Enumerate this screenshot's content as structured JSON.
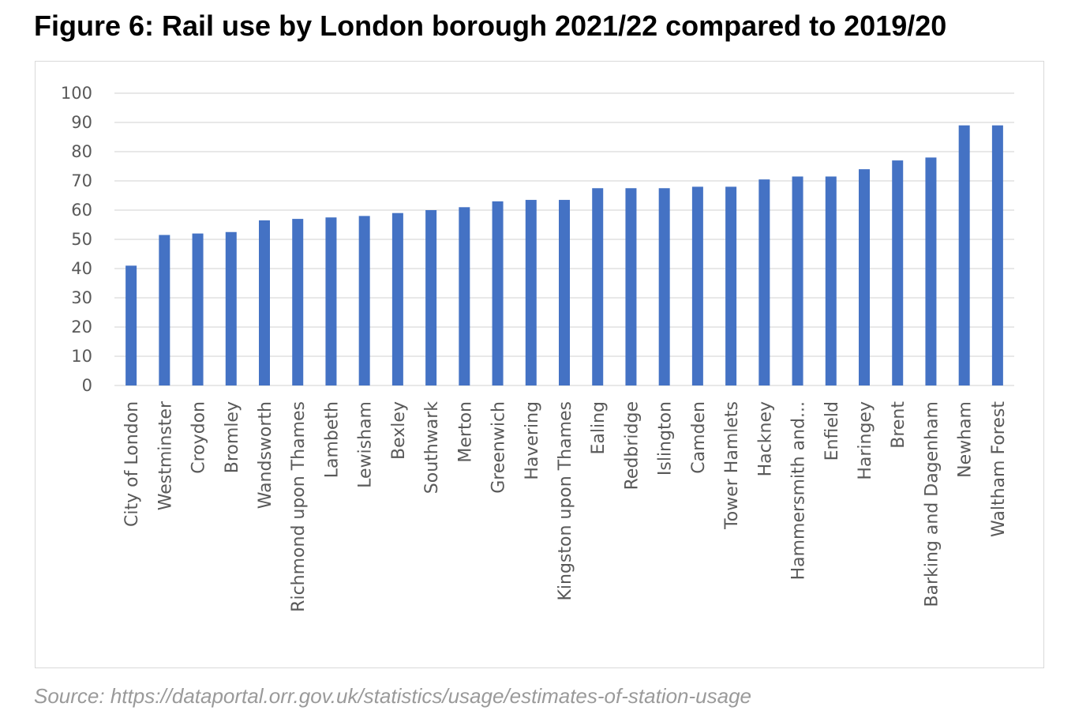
{
  "title": "Figure 6: Rail use by London borough 2021/22 compared to 2019/20",
  "source": "Source: https://dataportal.orr.gov.uk/statistics/usage/estimates-of-station-usage",
  "colors": {
    "bar": "#4472c4",
    "grid": "#d9d9d9",
    "axis_text": "#595959"
  },
  "chart_data": {
    "type": "bar",
    "title": "Figure 6: Rail use by London borough 2021/22 compared to 2019/20",
    "xlabel": "",
    "ylabel": "",
    "ylim": [
      0,
      100
    ],
    "yticks": [
      "0",
      "10",
      "20",
      "30",
      "40",
      "50",
      "60",
      "70",
      "80",
      "90",
      "100"
    ],
    "grid": true,
    "legend": "none",
    "categories": [
      "City of London",
      "Westminster",
      "Croydon",
      "Bromley",
      "Wandsworth",
      "Richmond upon Thames",
      "Lambeth",
      "Lewisham",
      "Bexley",
      "Southwark",
      "Merton",
      "Greenwich",
      "Havering",
      "Kingston upon Thames",
      "Ealing",
      "Redbridge",
      "Islington",
      "Camden",
      "Tower Hamlets",
      "Hackney",
      "Hammersmith and...",
      "Enfield",
      "Haringey",
      "Brent",
      "Barking and Dagenham",
      "Newham",
      "Waltham Forest"
    ],
    "values": [
      41,
      51.5,
      52,
      52.5,
      56.5,
      57,
      57.5,
      58,
      59,
      60,
      61,
      63,
      63.5,
      63.5,
      67.5,
      67.5,
      67.5,
      68,
      68,
      70.5,
      71.5,
      71.5,
      74,
      77,
      78,
      89,
      89
    ]
  }
}
